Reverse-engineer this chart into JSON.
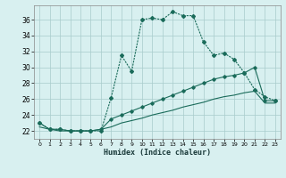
{
  "xlabel": "Humidex (Indice chaleur)",
  "bg_color": "#d8f0f0",
  "grid_color": "#a8cccc",
  "line_color": "#1a6b5a",
  "xlim": [
    -0.5,
    23.5
  ],
  "ylim": [
    21.0,
    37.8
  ],
  "xticks": [
    0,
    1,
    2,
    3,
    4,
    5,
    6,
    7,
    8,
    9,
    10,
    11,
    12,
    13,
    14,
    15,
    16,
    17,
    18,
    19,
    20,
    21,
    22,
    23
  ],
  "yticks": [
    22,
    24,
    26,
    28,
    30,
    32,
    34,
    36
  ],
  "curve1_x": [
    0,
    1,
    2,
    3,
    4,
    5,
    6,
    7,
    8,
    9,
    10,
    11,
    12,
    13,
    14,
    15,
    16,
    17,
    18,
    19,
    20,
    21,
    22,
    23
  ],
  "curve1_y": [
    23.0,
    22.2,
    22.2,
    22.0,
    22.0,
    22.0,
    22.0,
    26.2,
    31.5,
    29.5,
    36.0,
    36.2,
    36.0,
    37.0,
    36.5,
    36.5,
    33.2,
    31.5,
    31.8,
    31.0,
    29.3,
    27.2,
    26.3,
    25.8
  ],
  "curve2_x": [
    0,
    1,
    2,
    3,
    4,
    5,
    6,
    7,
    8,
    9,
    10,
    11,
    12,
    13,
    14,
    15,
    16,
    17,
    18,
    19,
    20,
    21,
    22,
    23
  ],
  "curve2_y": [
    23.0,
    22.2,
    22.2,
    22.0,
    22.0,
    22.0,
    22.2,
    23.5,
    24.0,
    24.5,
    25.0,
    25.5,
    26.0,
    26.5,
    27.0,
    27.5,
    28.0,
    28.5,
    28.8,
    29.0,
    29.3,
    30.0,
    25.8,
    25.8
  ],
  "curve3_x": [
    0,
    1,
    2,
    3,
    4,
    5,
    6,
    7,
    8,
    9,
    10,
    11,
    12,
    13,
    14,
    15,
    16,
    17,
    18,
    19,
    20,
    21,
    22,
    23
  ],
  "curve3_y": [
    22.5,
    22.2,
    22.0,
    22.0,
    22.0,
    22.0,
    22.2,
    22.5,
    23.0,
    23.3,
    23.6,
    24.0,
    24.3,
    24.6,
    25.0,
    25.3,
    25.6,
    26.0,
    26.3,
    26.5,
    26.8,
    27.0,
    25.5,
    25.5
  ]
}
